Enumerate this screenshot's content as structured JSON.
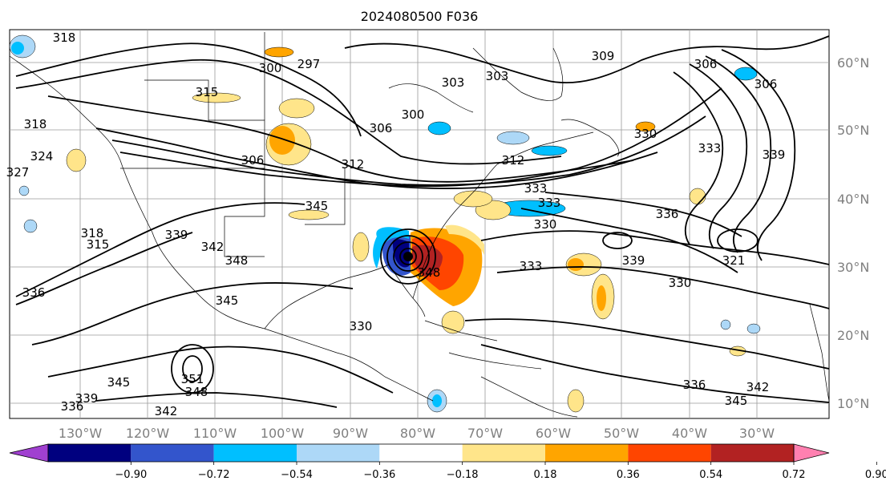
{
  "title": "2024080500 F036",
  "lon_labels": [
    "130°W",
    "120°W",
    "110°W",
    "100°W",
    "90°W",
    "80°W",
    "70°W",
    "60°W",
    "50°W",
    "40°W",
    "30°W"
  ],
  "lat_labels": [
    "60°N",
    "50°N",
    "40°N",
    "30°N",
    "20°N",
    "10°N"
  ],
  "colorbar": {
    "ticks": [
      "−0.90",
      "−0.72",
      "−0.54",
      "−0.36",
      "−0.18",
      "0.18",
      "0.36",
      "0.54",
      "0.72",
      "0.90"
    ],
    "colors": [
      "#a040d0",
      "#00007f",
      "#3355cc",
      "#00bfff",
      "#add8f7",
      "#ffffff",
      "#ffe58a",
      "#ffa500",
      "#ff4500",
      "#b22222",
      "#ff80b0"
    ]
  },
  "contour_labels": [
    "318",
    "300",
    "297",
    "309",
    "303",
    "303",
    "306",
    "306",
    "315",
    "306",
    "300",
    "330",
    "333",
    "339",
    "318",
    "327",
    "324",
    "312",
    "306",
    "312",
    "333",
    "333",
    "336",
    "345",
    "330",
    "333",
    "339",
    "330",
    "321",
    "318",
    "339",
    "342",
    "348",
    "345",
    "336",
    "339",
    "345",
    "351",
    "348",
    "342",
    "336",
    "345",
    "342",
    "348",
    "330",
    "315",
    "336"
  ]
}
